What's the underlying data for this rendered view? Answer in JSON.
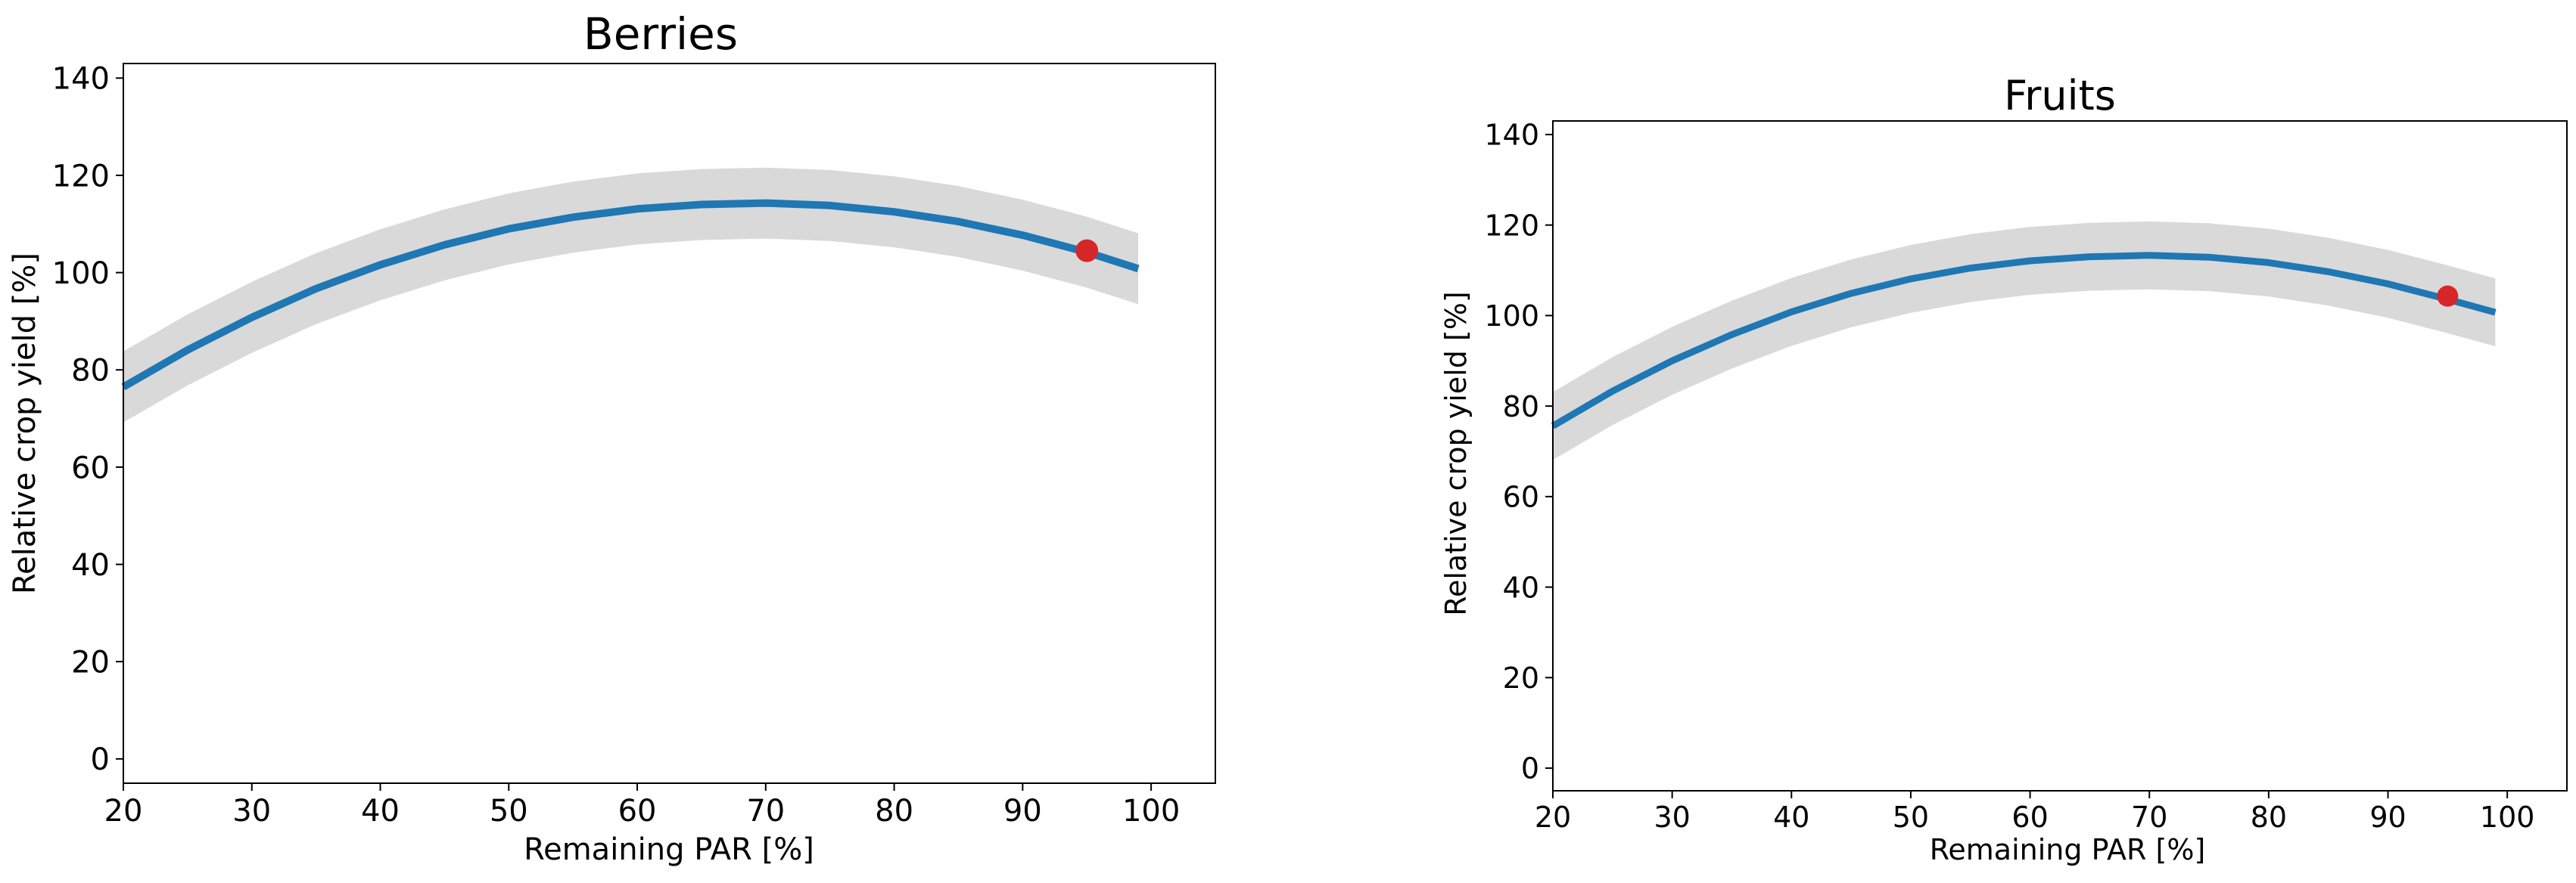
{
  "chart_data": [
    {
      "type": "line",
      "title": "Berries",
      "xlabel": "Remaining PAR [%]",
      "ylabel": "Relative crop yield [%]",
      "xlim": [
        20,
        105
      ],
      "ylim": [
        -5,
        143
      ],
      "xticks": [
        20,
        30,
        40,
        50,
        60,
        70,
        80,
        90,
        100
      ],
      "yticks": [
        0,
        20,
        40,
        60,
        80,
        100,
        120,
        140
      ],
      "grid": false,
      "curve": {
        "x": [
          20,
          25,
          30,
          35,
          40,
          45,
          50,
          55,
          60,
          65,
          70,
          75,
          80,
          85,
          90,
          95,
          99
        ],
        "y": [
          76.5,
          84.1,
          90.8,
          96.7,
          101.6,
          105.7,
          109.0,
          111.4,
          113.1,
          114.0,
          114.3,
          113.8,
          112.5,
          110.5,
          107.7,
          104.2,
          100.8
        ],
        "lower": [
          69.2,
          76.8,
          83.5,
          89.4,
          94.3,
          98.4,
          101.7,
          104.1,
          105.8,
          106.7,
          107.0,
          106.5,
          105.2,
          103.2,
          100.4,
          96.9,
          93.5
        ],
        "upper": [
          83.8,
          91.4,
          98.1,
          104.0,
          108.9,
          113.0,
          116.3,
          118.7,
          120.4,
          121.3,
          121.6,
          121.1,
          119.8,
          117.8,
          115.0,
          111.5,
          108.1
        ]
      },
      "colors": {
        "line": "#1f77b4",
        "band": "#d9d9d9",
        "marker": "#d62728"
      },
      "points": [
        {
          "x": 95,
          "y": 104.5
        }
      ]
    },
    {
      "type": "line",
      "title": "Fruits",
      "xlabel": "Remaining PAR [%]",
      "ylabel": "Relative crop yield [%]",
      "xlim": [
        20,
        105
      ],
      "ylim": [
        -5,
        143
      ],
      "xticks": [
        20,
        30,
        40,
        50,
        60,
        70,
        80,
        90,
        100
      ],
      "yticks": [
        0,
        20,
        40,
        60,
        80,
        100,
        120,
        140
      ],
      "grid": false,
      "curve": {
        "x": [
          20,
          25,
          30,
          35,
          40,
          45,
          50,
          55,
          60,
          65,
          70,
          75,
          80,
          85,
          90,
          95,
          99
        ],
        "y": [
          75.6,
          83.3,
          90.0,
          95.8,
          100.8,
          104.9,
          108.1,
          110.5,
          112.1,
          113.0,
          113.3,
          112.9,
          111.7,
          109.7,
          107.0,
          103.6,
          100.7
        ],
        "lower": [
          68.1,
          75.8,
          82.5,
          88.3,
          93.3,
          97.4,
          100.6,
          103.0,
          104.6,
          105.5,
          105.8,
          105.4,
          104.2,
          102.2,
          99.5,
          96.1,
          93.2
        ],
        "upper": [
          83.1,
          90.8,
          97.5,
          103.3,
          108.3,
          112.4,
          115.6,
          118.0,
          119.6,
          120.5,
          120.8,
          120.4,
          119.2,
          117.2,
          114.5,
          111.1,
          108.2
        ]
      },
      "colors": {
        "line": "#1f77b4",
        "band": "#d9d9d9",
        "marker": "#d62728"
      },
      "points": [
        {
          "x": 95,
          "y": 104.3
        }
      ]
    }
  ]
}
